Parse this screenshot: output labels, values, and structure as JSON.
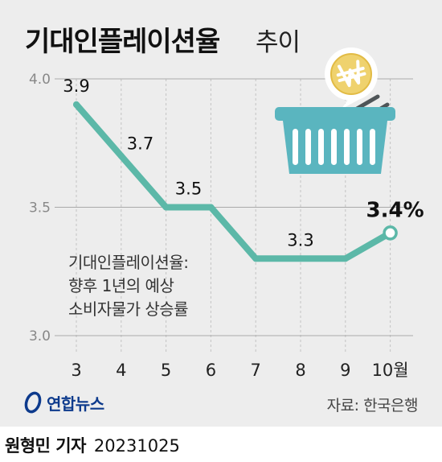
{
  "header": {
    "title_main": "기대인플레이션율",
    "title_sub": "추이"
  },
  "annotation": {
    "lines": [
      "기대인플레이션율:",
      "향후 1년의 예상",
      "소비자물가 상승률"
    ]
  },
  "source": "자료: 한국은행",
  "logo": {
    "text": "연합뉴스"
  },
  "byline": {
    "name": "원형민 기자",
    "date": "20231025"
  },
  "icons": [
    "basket-icon",
    "won-coin-icon"
  ],
  "colors": {
    "line": "#5cb8a8",
    "marker_end_fill": "#ffffff",
    "grid": "#aaaaaa",
    "background": "#ededed"
  },
  "chart_data": {
    "type": "line",
    "title": "기대인플레이션율 추이",
    "categories": [
      "3",
      "4",
      "5",
      "6",
      "7",
      "8",
      "9",
      "10월"
    ],
    "series": [
      {
        "values": [
          3.9,
          3.7,
          3.5,
          3.5,
          3.3,
          3.3,
          3.3,
          3.4
        ]
      }
    ],
    "data_labels": [
      {
        "index": 0,
        "text": "3.9"
      },
      {
        "index": 1,
        "text": "3.7"
      },
      {
        "index": 3,
        "text": "3.5"
      },
      {
        "index": 5,
        "text": "3.3"
      },
      {
        "index": 7,
        "text": "3.4%"
      }
    ],
    "y_ticks": [
      "3.0",
      "3.5",
      "4.0"
    ],
    "ylim": [
      3.0,
      4.0
    ],
    "grid": true,
    "xlabel": "",
    "ylabel": ""
  }
}
